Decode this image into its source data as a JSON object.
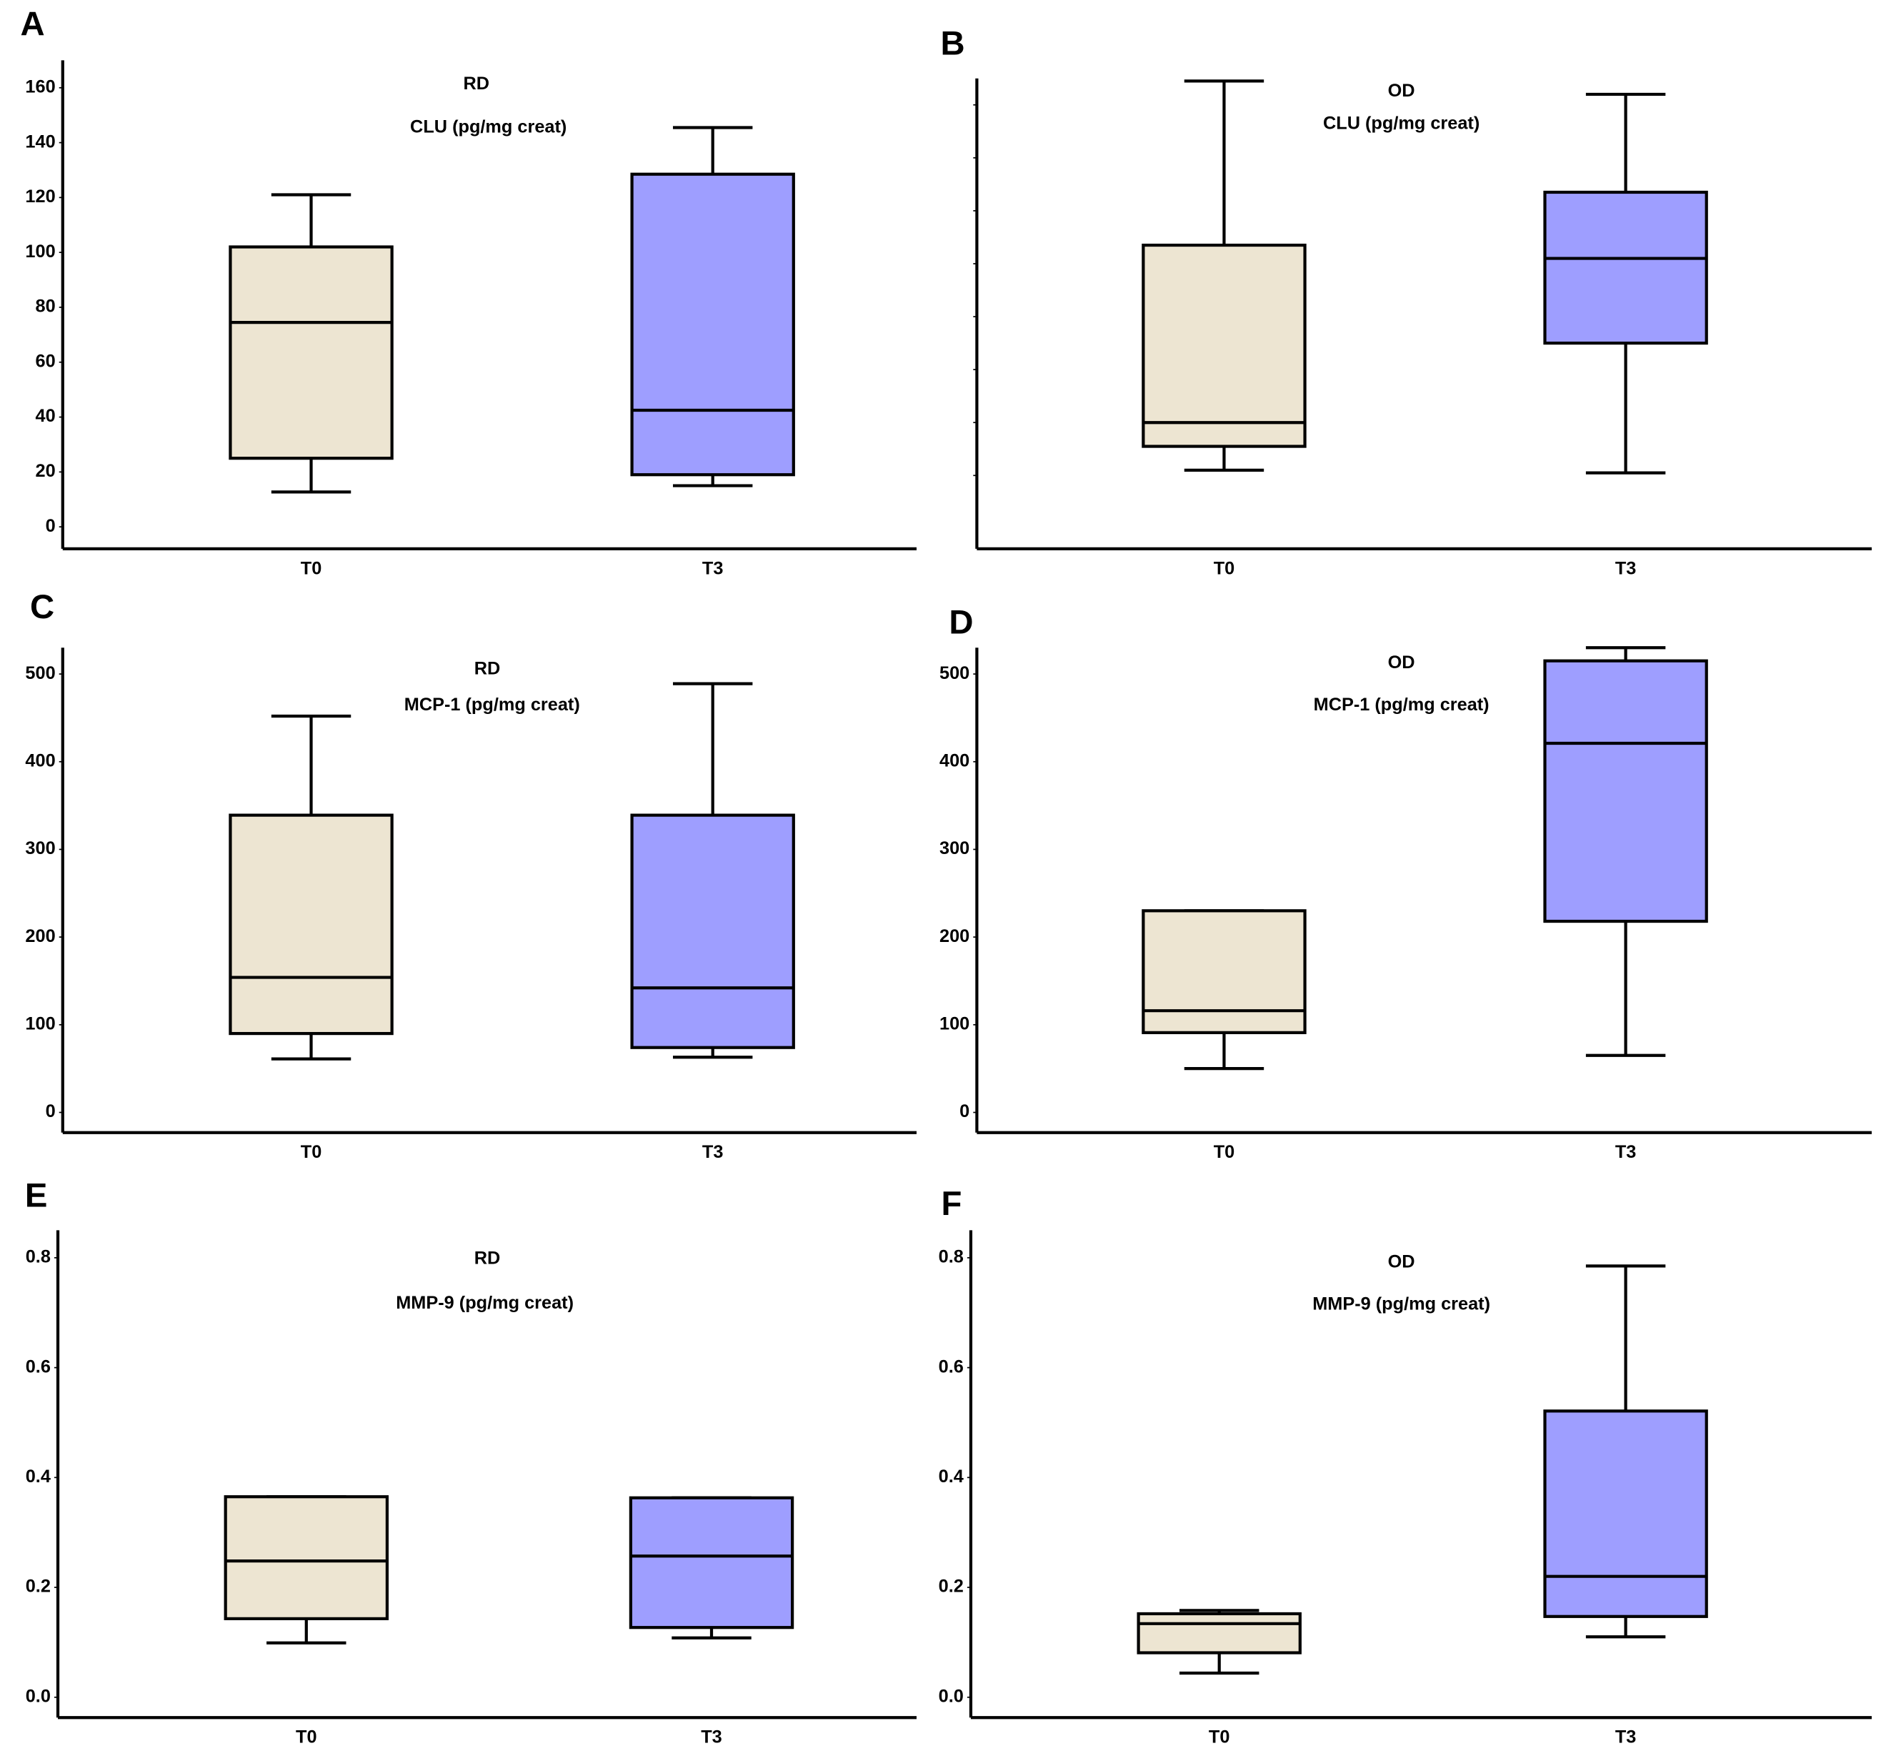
{
  "chart_data": [
    {
      "type": "box",
      "panel": "A",
      "title": "RD",
      "subtitle": "CLU (pg/mg creat)",
      "categories": [
        "T0",
        "T3"
      ],
      "colors": [
        "#ede5d2",
        "#9e9eff"
      ],
      "boxes": [
        {
          "min": 12.7,
          "q1": 25,
          "median": 74.5,
          "q3": 102,
          "max": 121
        },
        {
          "min": 15,
          "q1": 19,
          "median": 42.5,
          "q3": 128.5,
          "max": 145.5
        }
      ],
      "ylim": [
        -8,
        170
      ],
      "yticks": [
        0,
        20,
        40,
        60,
        80,
        100,
        120,
        140,
        160
      ]
    },
    {
      "type": "box",
      "panel": "B",
      "title": "OD",
      "subtitle": "CLU (pg/mg creat)",
      "categories": [
        "T0",
        "T3"
      ],
      "colors": [
        "#ede5d2",
        "#9e9eff"
      ],
      "boxes": [
        {
          "min": 22,
          "q1": 31,
          "median": 40,
          "q3": 107,
          "max": 169
        },
        {
          "min": 21,
          "q1": 70,
          "median": 102,
          "q3": 127,
          "max": 164
        }
      ],
      "ylim": [
        -7.7,
        170
      ],
      "yticks": [
        20,
        40,
        60,
        80,
        100,
        120,
        140,
        160
      ],
      "show_ytick_labels": false
    },
    {
      "type": "box",
      "panel": "C",
      "title": "RD",
      "subtitle": "MCP-1 (pg/mg creat)",
      "categories": [
        "T0",
        "T3"
      ],
      "colors": [
        "#ede5d2",
        "#9e9eff"
      ],
      "boxes": [
        {
          "min": 61,
          "q1": 90,
          "median": 154,
          "q3": 339,
          "max": 452
        },
        {
          "min": 63,
          "q1": 74,
          "median": 142,
          "q3": 339,
          "max": 489
        }
      ],
      "ylim": [
        -23,
        530
      ],
      "yticks": [
        0,
        100,
        200,
        300,
        400,
        500
      ]
    },
    {
      "type": "box",
      "panel": "D",
      "title": "OD",
      "subtitle": "MCP-1 (pg/mg creat)",
      "categories": [
        "T0",
        "T3"
      ],
      "colors": [
        "#ede5d2",
        "#9e9eff"
      ],
      "boxes": [
        {
          "min": 50,
          "q1": 91,
          "median": 116,
          "q3": 230,
          "max": 230
        },
        {
          "min": 65,
          "q1": 218,
          "median": 421,
          "q3": 515,
          "max": 530
        }
      ],
      "ylim": [
        -23,
        530
      ],
      "yticks": [
        0,
        100,
        200,
        300,
        400,
        500
      ]
    },
    {
      "type": "box",
      "panel": "E",
      "title": "RD",
      "subtitle": "MMP-9 (pg/mg creat)",
      "categories": [
        "T0",
        "T3"
      ],
      "colors": [
        "#ede5d2",
        "#9e9eff"
      ],
      "boxes": [
        {
          "min": 0.099,
          "q1": 0.143,
          "median": 0.248,
          "q3": 0.365,
          "max": 0.365
        },
        {
          "min": 0.108,
          "q1": 0.127,
          "median": 0.257,
          "q3": 0.363,
          "max": 0.363
        }
      ],
      "ylim": [
        -0.037,
        0.85
      ],
      "yticks": [
        {
          "value": 0,
          "label": "0.0"
        },
        0.2,
        0.4,
        0.6,
        0.8
      ]
    },
    {
      "type": "box",
      "panel": "F",
      "title": "OD",
      "subtitle": "MMP-9 (pg/mg creat)",
      "categories": [
        "T0",
        "T3"
      ],
      "colors": [
        "#ede5d2",
        "#9e9eff"
      ],
      "boxes": [
        {
          "min": 0.044,
          "q1": 0.081,
          "median": 0.134,
          "q3": 0.152,
          "max": 0.158
        },
        {
          "min": 0.11,
          "q1": 0.147,
          "median": 0.22,
          "q3": 0.521,
          "max": 0.785
        }
      ],
      "ylim": [
        -0.037,
        0.85
      ],
      "yticks": [
        {
          "value": 0,
          "label": "0.0"
        },
        0.2,
        0.4,
        0.6,
        0.8
      ]
    }
  ]
}
